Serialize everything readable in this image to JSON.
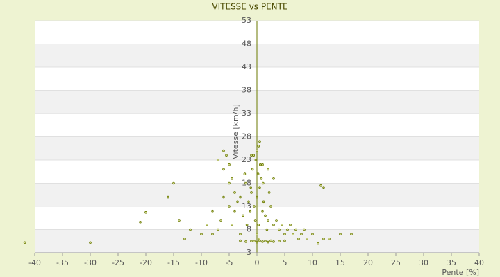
{
  "chart_data": {
    "type": "scatter",
    "title": "VITESSE vs PENTE",
    "x_label": "Pente [%]",
    "y_label": "Vitesse [km/h]",
    "color": "#6b7a00",
    "grid": true,
    "xlim": [
      -40,
      40
    ],
    "ylim": [
      3,
      53
    ],
    "xticks": [
      -40,
      -35,
      -30,
      -25,
      -20,
      -15,
      -10,
      -5,
      0,
      5,
      10,
      15,
      20,
      25,
      30,
      35,
      40
    ],
    "yticks": [
      3,
      8,
      13,
      18,
      23,
      28,
      33,
      38,
      43,
      48,
      53
    ],
    "x": [
      0,
      0.5,
      -0.5,
      1,
      -1,
      1.5,
      -1.5,
      2,
      -2,
      0.2,
      0.8,
      -0.8,
      1.2,
      -1.2,
      2.5,
      -2.5,
      3,
      -3,
      0.3,
      -0.3,
      1.8,
      -1.8,
      2.2,
      -2.2,
      0.6,
      -0.6,
      1.1,
      -1.1,
      0,
      0.4,
      3.5,
      4,
      4.5,
      5,
      5.5,
      6,
      6.5,
      7,
      7.5,
      8,
      8.5,
      9,
      10,
      11,
      12,
      13,
      15,
      17,
      12,
      11.5,
      -4,
      -4.5,
      -5,
      -5.5,
      -6,
      -6.5,
      -7,
      -8,
      -9,
      -10,
      -3.5,
      -4,
      -5,
      -6,
      -7,
      -5,
      -4.5,
      -3,
      -6,
      -8,
      -0.5,
      0,
      0.5,
      1,
      1.5,
      2,
      2.5,
      3,
      4,
      5,
      -1,
      -2,
      -3,
      -12,
      -13,
      -14,
      -15,
      -16,
      -20,
      -21,
      -30,
      -41.8,
      0,
      0.3,
      -0.2,
      0.5,
      1,
      2,
      -1,
      3
    ],
    "y": [
      15,
      17,
      13,
      12,
      16,
      11,
      14,
      10,
      18,
      20,
      19,
      21,
      14,
      12,
      13,
      11,
      9,
      15,
      9,
      10,
      8,
      9,
      16,
      20,
      22,
      24,
      18,
      17,
      7,
      6,
      10,
      8,
      9,
      7,
      8,
      9,
      7,
      8,
      6,
      7,
      8,
      6,
      7,
      5,
      6,
      6,
      7,
      7,
      17,
      17.5,
      12,
      19,
      22,
      24,
      21,
      10,
      8,
      7,
      9,
      7,
      14,
      16,
      18,
      25,
      23,
      13,
      9,
      7,
      15,
      12,
      5.5,
      5.3,
      5.6,
      5.4,
      5.5,
      5.3,
      5.6,
      5.4,
      5.5,
      5.6,
      5.5,
      5.4,
      5.6,
      8,
      6,
      10,
      18,
      15,
      11.7,
      9.6,
      5.2,
      5.2,
      25,
      26,
      23,
      27,
      22,
      21,
      24,
      19
    ]
  }
}
